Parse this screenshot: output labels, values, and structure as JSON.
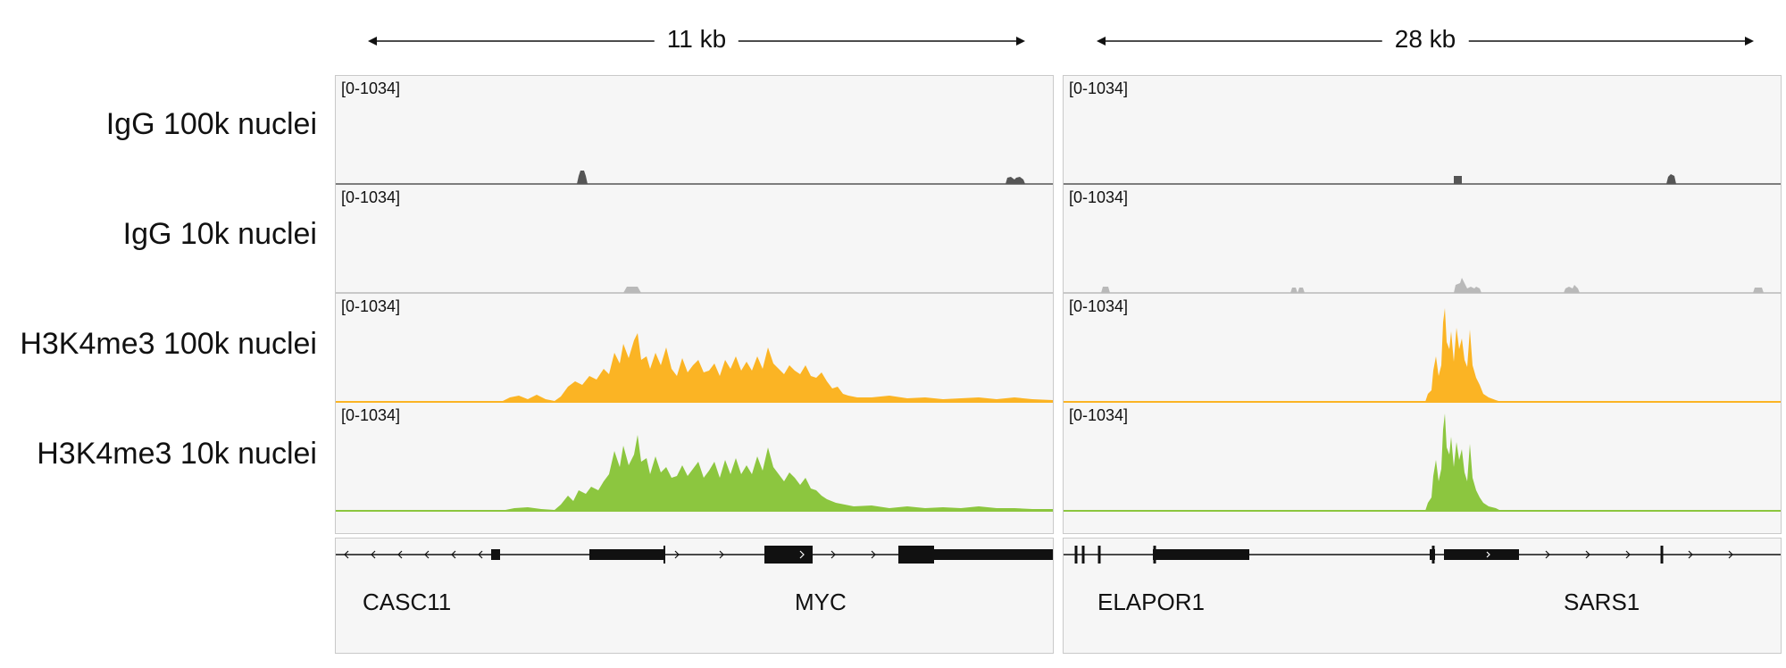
{
  "scales": [
    {
      "label": "11 kb"
    },
    {
      "label": "28 kb"
    }
  ],
  "tracks": [
    {
      "name": "IgG 100k nuclei",
      "range": "[0-1034]",
      "color": "#555555",
      "baseline": "#555555"
    },
    {
      "name": "IgG 10k nuclei",
      "range": "[0-1034]",
      "color": "#b9b9b9",
      "baseline": "#b9b9b9"
    },
    {
      "name": "H3K4me3 100k nuclei",
      "range": "[0-1034]",
      "color": "#fbb424",
      "baseline": "#fbb424"
    },
    {
      "name": "H3K4me3 10k nuclei",
      "range": "[0-1034]",
      "color": "#8cc63f",
      "baseline": "#8cc63f"
    }
  ],
  "genes": {
    "left": [
      "CASC11",
      "MYC"
    ],
    "right": [
      "ELAPOR1",
      "SARS1"
    ]
  }
}
